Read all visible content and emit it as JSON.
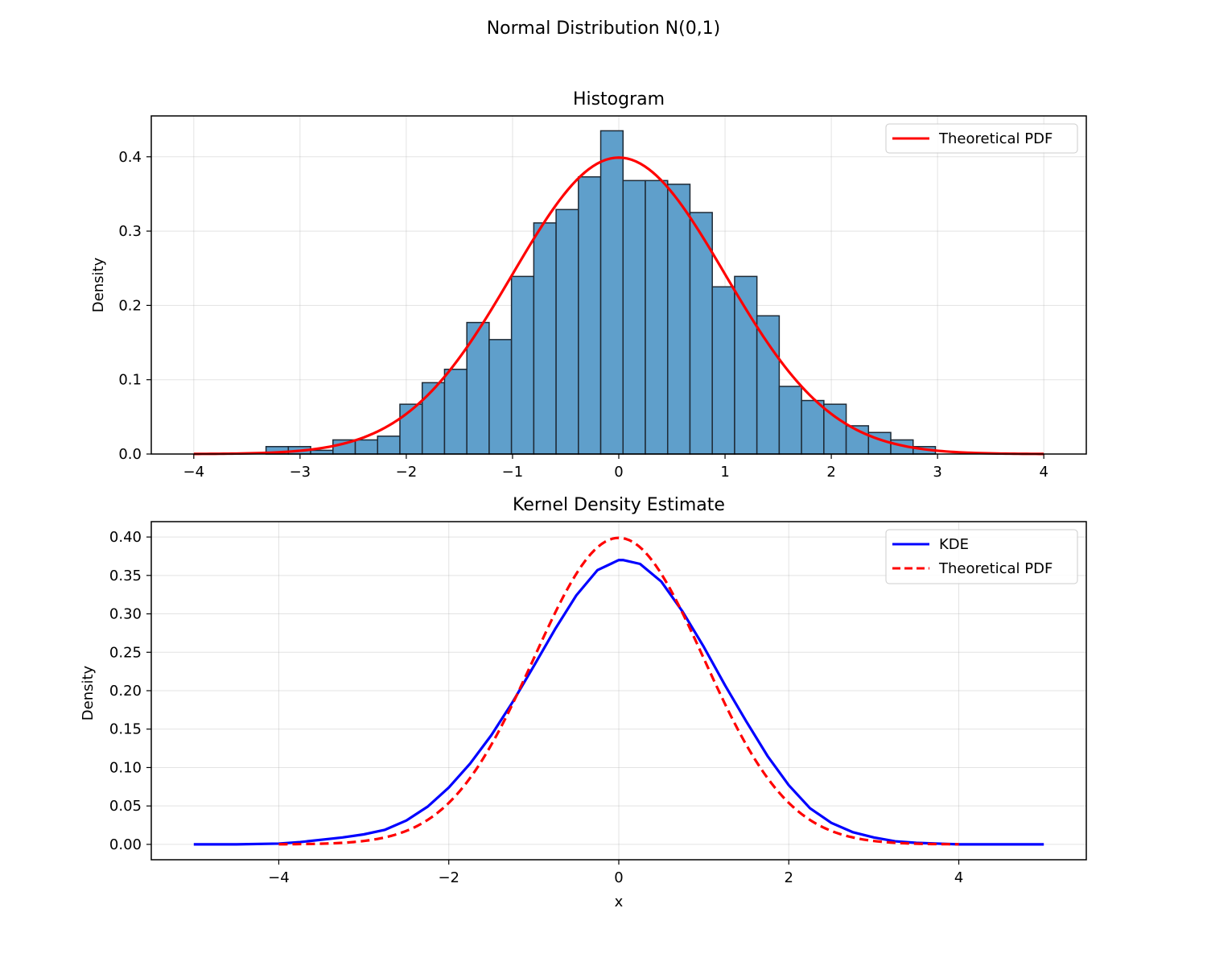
{
  "figure": {
    "title": "Normal Distribution N(0,1)"
  },
  "chart_data": [
    {
      "type": "bar",
      "title": "Histogram",
      "xlabel": "",
      "ylabel": "Density",
      "xlim": [
        -4.4,
        4.4
      ],
      "ylim": [
        0,
        0.455
      ],
      "grid": true,
      "legend_placement": "top-right",
      "x_ticks": [
        -4,
        -3,
        -2,
        -1,
        0,
        1,
        2,
        3,
        4
      ],
      "x_tick_labels": [
        "−4",
        "−3",
        "−2",
        "−1",
        "0",
        "1",
        "2",
        "3",
        "4"
      ],
      "y_ticks": [
        0.0,
        0.1,
        0.2,
        0.3,
        0.4
      ],
      "y_tick_labels": [
        "0.0",
        "0.1",
        "0.2",
        "0.3",
        "0.4"
      ],
      "bins": {
        "edges": [
          -3.32,
          -3.11,
          -2.9,
          -2.69,
          -2.48,
          -2.27,
          -2.06,
          -1.85,
          -1.64,
          -1.43,
          -1.22,
          -1.01,
          -0.8,
          -0.59,
          -0.38,
          -0.17,
          0.04,
          0.25,
          0.46,
          0.67,
          0.88,
          1.09,
          1.3,
          1.51,
          1.72,
          1.93,
          2.14,
          2.35,
          2.56,
          2.77,
          2.98
        ],
        "values": [
          0.01,
          0.01,
          0.005,
          0.019,
          0.019,
          0.024,
          0.067,
          0.096,
          0.114,
          0.177,
          0.154,
          0.239,
          0.311,
          0.329,
          0.373,
          0.435,
          0.368,
          0.368,
          0.363,
          0.325,
          0.225,
          0.239,
          0.186,
          0.091,
          0.072,
          0.067,
          0.038,
          0.029,
          0.019,
          0.01
        ],
        "color": "#5f9fcb",
        "edgecolor": "#1e2a36"
      },
      "series": [
        {
          "name": "Theoretical PDF",
          "kind": "normal_pdf",
          "mu": 0,
          "sigma": 1,
          "x_range": [
            -4,
            4
          ],
          "color": "#ff0000",
          "style": "solid"
        }
      ]
    },
    {
      "type": "line",
      "title": "Kernel Density Estimate",
      "xlabel": "x",
      "ylabel": "Density",
      "xlim": [
        -5.5,
        5.5
      ],
      "ylim": [
        -0.02,
        0.42
      ],
      "grid": true,
      "legend_placement": "top-right",
      "x_ticks": [
        -4,
        -2,
        0,
        2,
        4
      ],
      "x_tick_labels": [
        "−4",
        "−2",
        "0",
        "2",
        "4"
      ],
      "y_ticks": [
        0.0,
        0.05,
        0.1,
        0.15,
        0.2,
        0.25,
        0.3,
        0.35,
        0.4
      ],
      "y_tick_labels": [
        "0.00",
        "0.05",
        "0.10",
        "0.15",
        "0.20",
        "0.25",
        "0.30",
        "0.35",
        "0.40"
      ],
      "series": [
        {
          "name": "KDE",
          "kind": "points",
          "color": "#0000ff",
          "style": "solid",
          "x": [
            -5.0,
            -4.5,
            -4.0,
            -3.75,
            -3.5,
            -3.25,
            -3.0,
            -2.75,
            -2.5,
            -2.25,
            -2.0,
            -1.75,
            -1.5,
            -1.25,
            -1.0,
            -0.75,
            -0.5,
            -0.25,
            0.0,
            0.05,
            0.25,
            0.5,
            0.75,
            1.0,
            1.25,
            1.5,
            1.75,
            2.0,
            2.25,
            2.5,
            2.75,
            3.0,
            3.25,
            3.5,
            3.75,
            4.0,
            4.5,
            5.0
          ],
          "y": [
            0.0,
            0.0,
            0.001,
            0.003,
            0.006,
            0.009,
            0.013,
            0.019,
            0.031,
            0.049,
            0.074,
            0.105,
            0.142,
            0.185,
            0.232,
            0.28,
            0.324,
            0.357,
            0.37,
            0.37,
            0.365,
            0.342,
            0.303,
            0.257,
            0.207,
            0.16,
            0.115,
            0.077,
            0.047,
            0.028,
            0.016,
            0.009,
            0.004,
            0.002,
            0.001,
            0.0,
            0.0,
            0.0
          ]
        },
        {
          "name": "Theoretical PDF",
          "kind": "normal_pdf",
          "mu": 0,
          "sigma": 1,
          "x_range": [
            -4,
            4
          ],
          "color": "#ff0000",
          "style": "dashed"
        }
      ]
    }
  ]
}
